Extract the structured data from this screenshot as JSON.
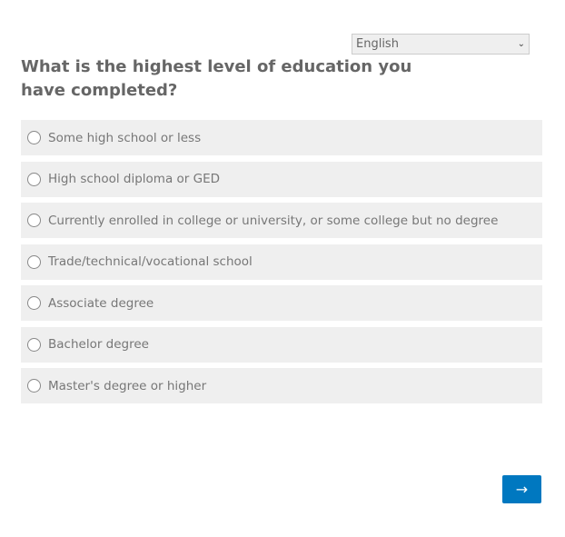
{
  "language_select": {
    "value": "English"
  },
  "question": "What is the highest level of education you have completed?",
  "options": [
    "Some high school or less",
    "High school diploma or GED",
    "Currently enrolled in college or university, or some college but no degree",
    "Trade/technical/vocational school",
    "Associate degree",
    "Bachelor degree",
    "Master's degree or higher"
  ],
  "next_button": {
    "label": "→",
    "color": "#0078c0"
  }
}
